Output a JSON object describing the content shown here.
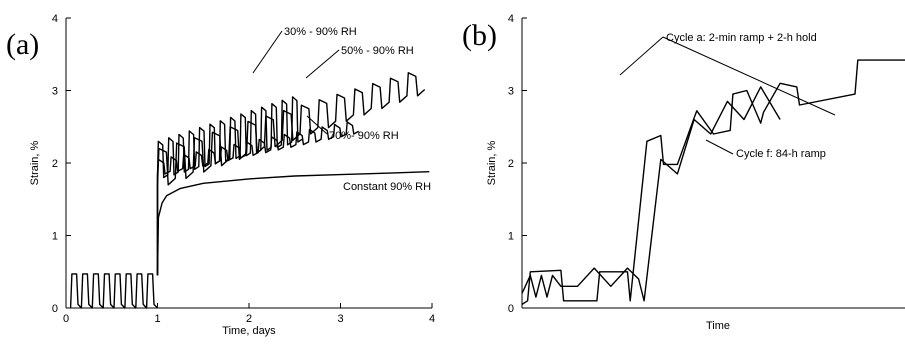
{
  "chart_data": [
    {
      "type": "line",
      "panel_label": "(a)",
      "xlabel": "Time, days",
      "ylabel": "Strain, %",
      "xlim": [
        0,
        4
      ],
      "ylim": [
        0,
        4
      ],
      "x_ticks": [
        "0",
        "1",
        "2",
        "3",
        "4"
      ],
      "y_ticks": [
        "0",
        "1",
        "2",
        "3",
        "4"
      ],
      "grid": false,
      "series": [
        {
          "name": "30% - 90% RH",
          "x": [
            1.0,
            4.0
          ],
          "y_low": [
            1.8,
            2.8
          ],
          "y_high": [
            2.3,
            3.55
          ],
          "periods": 14,
          "x_end": 2.58
        },
        {
          "name": "50% - 90% RH",
          "x": [
            1.0,
            4.0
          ],
          "y_low": [
            1.7,
            3.05
          ],
          "y_high": [
            2.2,
            3.35
          ],
          "periods": 15,
          "x_end": 3.92
        },
        {
          "name": "70%- 90% RH",
          "x": [
            1.0,
            4.0
          ],
          "y_low": [
            1.85,
            2.65
          ],
          "y_high": [
            2.05,
            2.8
          ],
          "periods": 16,
          "x_end": 3.2
        },
        {
          "name": "Constant 90% RH",
          "x": [
            1.0,
            1.01,
            1.05,
            1.1,
            1.25,
            1.5,
            2.0,
            2.5,
            3.0,
            3.5,
            3.97
          ],
          "y": [
            0.45,
            1.25,
            1.45,
            1.55,
            1.65,
            1.72,
            1.78,
            1.82,
            1.84,
            1.86,
            1.88
          ]
        }
      ],
      "pre_step": {
        "x": [
          0.05,
          1.0
        ],
        "y_low": 0.0,
        "y_high": 0.47,
        "periods": 8
      }
    },
    {
      "type": "line",
      "panel_label": "(b)",
      "xlabel": "Time",
      "ylabel": "Strain, %",
      "ylim": [
        0,
        4
      ],
      "y_ticks": [
        "0",
        "1",
        "2",
        "3",
        "4"
      ],
      "grid": false,
      "annotations": [
        "Cycle a: 2-min ramp + 2-h hold",
        "Cycle f: 84-h ramp"
      ],
      "series": [
        {
          "name": "Cycle a: 2-min ramp + 2-h hold",
          "t": [
            0.0,
            0.02,
            0.03,
            0.14,
            0.15,
            0.27,
            0.28,
            0.38,
            0.39,
            0.45,
            0.5,
            0.51,
            0.56,
            0.62,
            0.63,
            0.69,
            0.75,
            0.76,
            0.81,
            0.86,
            0.87,
            0.93,
            0.99,
            1.0,
            1.2,
            1.21,
            1.38
          ],
          "y": [
            0.05,
            0.1,
            0.5,
            0.52,
            0.1,
            0.1,
            0.5,
            0.5,
            0.1,
            2.3,
            2.38,
            1.98,
            1.98,
            2.62,
            2.72,
            2.4,
            2.45,
            2.95,
            3.0,
            2.55,
            2.7,
            3.1,
            3.05,
            2.8,
            2.95,
            3.42,
            3.42
          ]
        },
        {
          "name": "Cycle f: 84-h ramp",
          "t": [
            0.0,
            0.03,
            0.05,
            0.07,
            0.09,
            0.11,
            0.14,
            0.2,
            0.26,
            0.32,
            0.38,
            0.42,
            0.44,
            0.5,
            0.56,
            0.62,
            0.68,
            0.74,
            0.8,
            0.86,
            0.93
          ],
          "y": [
            0.2,
            0.45,
            0.15,
            0.45,
            0.15,
            0.45,
            0.3,
            0.3,
            0.55,
            0.3,
            0.55,
            0.4,
            0.1,
            2.05,
            1.85,
            2.6,
            2.4,
            2.85,
            2.6,
            3.05,
            2.6
          ]
        }
      ]
    }
  ]
}
